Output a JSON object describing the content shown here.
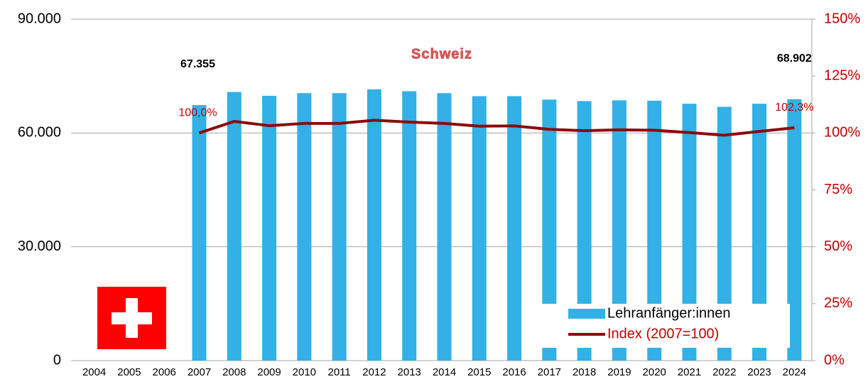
{
  "chart_data": {
    "type": "bar_line",
    "title": "Schweiz",
    "categories": [
      "2004",
      "2005",
      "2006",
      "2007",
      "2008",
      "2009",
      "2010",
      "2011",
      "2012",
      "2013",
      "2014",
      "2015",
      "2016",
      "2017",
      "2018",
      "2019",
      "2020",
      "2021",
      "2022",
      "2023",
      "2024"
    ],
    "series": [
      {
        "name": "Lehranfänger:innen",
        "type": "bar",
        "color": "#33b0e6",
        "values": [
          null,
          null,
          null,
          67355,
          70800,
          69800,
          70500,
          70500,
          71500,
          71000,
          70500,
          69700,
          69700,
          68800,
          68400,
          68600,
          68500,
          67700,
          66900,
          67700,
          68902
        ],
        "value_labels": [
          null,
          null,
          null,
          "67.355",
          null,
          null,
          null,
          null,
          null,
          null,
          null,
          null,
          null,
          null,
          null,
          null,
          null,
          null,
          null,
          null,
          "68.902"
        ]
      },
      {
        "name": "Index (2007=100)",
        "type": "line",
        "axis": "y2",
        "color": "#8b0a0a",
        "values": [
          null,
          null,
          null,
          100,
          105.1,
          103.2,
          104.2,
          104.2,
          105.6,
          104.8,
          104.2,
          103.0,
          103.1,
          101.6,
          101.0,
          101.4,
          101.2,
          100.2,
          99.0,
          100.7,
          102.3
        ],
        "value_labels": [
          null,
          null,
          null,
          "100,0%",
          null,
          null,
          null,
          null,
          null,
          null,
          null,
          null,
          null,
          null,
          null,
          null,
          null,
          null,
          null,
          null,
          "102,3%"
        ]
      }
    ],
    "ylim": [
      0,
      90000
    ],
    "yticks": [
      0,
      {
        "value": 30000,
        "label": "30.000"
      },
      {
        "value": 60000,
        "label": "60.000"
      },
      {
        "value": 90000,
        "label": "90.000"
      }
    ],
    "y2lim": [
      0,
      150
    ],
    "y2ticks": [
      {
        "value": 0,
        "label": "0%"
      },
      {
        "value": 25,
        "label": "25%"
      },
      {
        "value": 50,
        "label": "50%"
      },
      {
        "value": 75,
        "label": "75%"
      },
      {
        "value": 100,
        "label": "100%"
      },
      {
        "value": 125,
        "label": "125%"
      },
      {
        "value": 150,
        "label": "150%"
      }
    ],
    "grid": true,
    "legend": "lower right"
  }
}
